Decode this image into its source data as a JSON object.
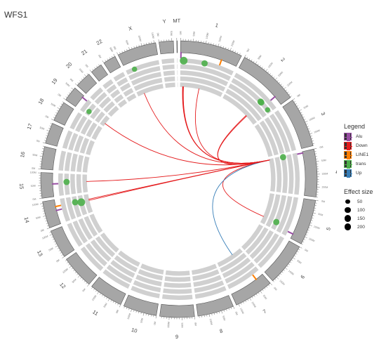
{
  "title": "WFS1",
  "chromosomes": [
    {
      "name": "1",
      "size": 249
    },
    {
      "name": "2",
      "size": 242
    },
    {
      "name": "3",
      "size": 198
    },
    {
      "name": "4",
      "size": 190
    },
    {
      "name": "5",
      "size": 181
    },
    {
      "name": "6",
      "size": 171
    },
    {
      "name": "7",
      "size": 159
    },
    {
      "name": "8",
      "size": 145
    },
    {
      "name": "9",
      "size": 138
    },
    {
      "name": "10",
      "size": 134
    },
    {
      "name": "11",
      "size": 135
    },
    {
      "name": "12",
      "size": 133
    },
    {
      "name": "13",
      "size": 114
    },
    {
      "name": "14",
      "size": 107
    },
    {
      "name": "15",
      "size": 102
    },
    {
      "name": "16",
      "size": 90
    },
    {
      "name": "17",
      "size": 83
    },
    {
      "name": "18",
      "size": 80
    },
    {
      "name": "19",
      "size": 59
    },
    {
      "name": "20",
      "size": 64
    },
    {
      "name": "21",
      "size": 47
    },
    {
      "name": "22",
      "size": 51
    },
    {
      "name": "X",
      "size": 156
    },
    {
      "name": "Y",
      "size": 57
    },
    {
      "name": "MT",
      "size": 2
    }
  ],
  "colors": {
    "Alu": "#984ea3",
    "Down": "#e41a1c",
    "LINE1": "#ff7f00",
    "trans": "#4daf4a",
    "Up": "#377eb8",
    "ideogram": "#a6a6a6",
    "track": "#d0d0d0",
    "point": "#4daf4a"
  },
  "source": {
    "chr": "4",
    "pos": 6.3
  },
  "links": [
    {
      "type": "Down",
      "chr": "1",
      "pos": 15
    },
    {
      "type": "Down",
      "chr": "1",
      "pos": 17
    },
    {
      "type": "Down",
      "chr": "1",
      "pos": 20
    },
    {
      "type": "Down",
      "chr": "1",
      "pos": 112
    },
    {
      "type": "Down",
      "chr": "2",
      "pos": 173
    },
    {
      "type": "Down",
      "chr": "2",
      "pos": 178
    },
    {
      "type": "Down",
      "chr": "5",
      "pos": 142
    },
    {
      "type": "Up",
      "chr": "7",
      "pos": 58
    },
    {
      "type": "Down",
      "chr": "14",
      "pos": 70
    },
    {
      "type": "Down",
      "chr": "14",
      "pos": 77
    },
    {
      "type": "Down",
      "chr": "15",
      "pos": 62
    },
    {
      "type": "Down",
      "chr": "19",
      "pos": 18
    },
    {
      "type": "Down",
      "chr": "X",
      "pos": 39
    }
  ],
  "points": [
    {
      "chr": "1",
      "pos": 15,
      "track": 1,
      "size": 200
    },
    {
      "chr": "1",
      "pos": 112,
      "track": 1,
      "size": 100
    },
    {
      "chr": "2",
      "pos": 173,
      "track": 2,
      "size": 100
    },
    {
      "chr": "2",
      "pos": 178,
      "track": 2,
      "size": 100
    },
    {
      "chr": "2",
      "pos": 225,
      "track": 2,
      "size": 50
    },
    {
      "chr": "4",
      "pos": 6.3,
      "track": 3,
      "size": 100
    },
    {
      "chr": "5",
      "pos": 142,
      "track": 3,
      "size": 100
    },
    {
      "chr": "14",
      "pos": 70,
      "track": 4,
      "size": 200
    },
    {
      "chr": "14",
      "pos": 77,
      "track": 3,
      "size": 100
    },
    {
      "chr": "15",
      "pos": 62,
      "track": 2,
      "size": 100
    },
    {
      "chr": "19",
      "pos": 18,
      "track": 2,
      "size": 50
    },
    {
      "chr": "X",
      "pos": 39,
      "track": 1,
      "size": 50
    }
  ],
  "marks": [
    {
      "type": "Alu",
      "chr": "1",
      "pos": 2
    },
    {
      "type": "LINE1",
      "chr": "1",
      "pos": 180
    },
    {
      "type": "Alu",
      "chr": "2",
      "pos": 200
    },
    {
      "type": "Alu",
      "chr": "4",
      "pos": 6.3
    },
    {
      "type": "Alu",
      "chr": "5",
      "pos": 160
    },
    {
      "type": "LINE1",
      "chr": "7",
      "pos": 35
    },
    {
      "type": "Alu",
      "chr": "14",
      "pos": 60
    },
    {
      "type": "LINE1",
      "chr": "14",
      "pos": 77
    },
    {
      "type": "Alu",
      "chr": "15",
      "pos": 55
    },
    {
      "type": "Alu",
      "chr": "19",
      "pos": 50
    }
  ],
  "legend": {
    "title": "Legend",
    "items": [
      {
        "label": "Alu",
        "key": "Alu"
      },
      {
        "label": "Down",
        "key": "Down"
      },
      {
        "label": "LINE1",
        "key": "LINE1"
      },
      {
        "label": "trans",
        "key": "trans"
      },
      {
        "label": "Up",
        "key": "Up"
      }
    ]
  },
  "size_legend": {
    "title": "Effect size",
    "items": [
      {
        "label": "50",
        "value": 50
      },
      {
        "label": "100",
        "value": 100
      },
      {
        "label": "150",
        "value": 150
      },
      {
        "label": "200",
        "value": 200
      }
    ]
  }
}
